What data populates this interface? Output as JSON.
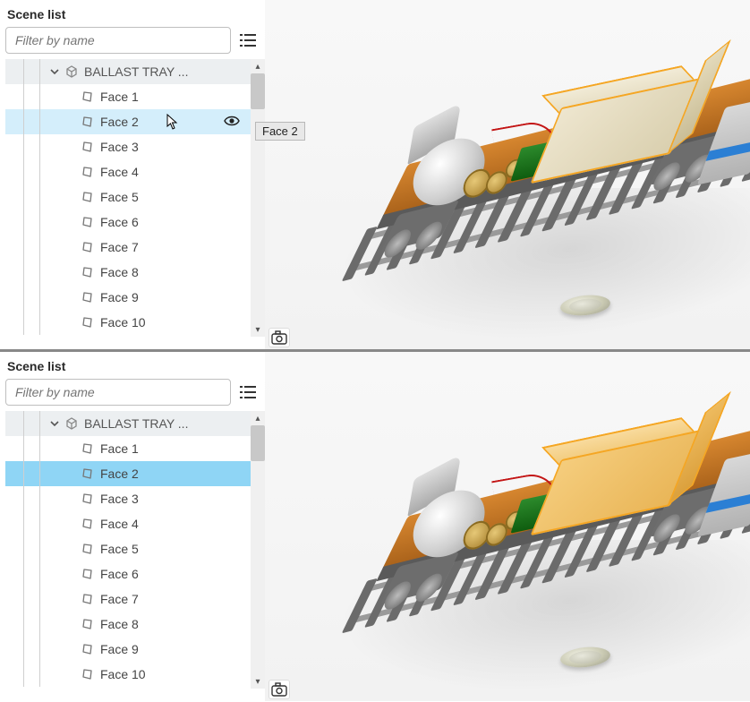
{
  "panels": [
    {
      "title": "Scene list",
      "filter_placeholder": "Filter by name",
      "parent_label": "BALLAST TRAY ...",
      "selected_index": 1,
      "hover_mode": true,
      "show_eye": true,
      "show_cursor": true,
      "tooltip_text": "Face 2",
      "faces": [
        "Face 1",
        "Face 2",
        "Face 3",
        "Face 4",
        "Face 5",
        "Face 6",
        "Face 7",
        "Face 8",
        "Face 9",
        "Face 10"
      ],
      "ballast_style": "outline"
    },
    {
      "title": "Scene list",
      "filter_placeholder": "Filter by name",
      "parent_label": "BALLAST TRAY ...",
      "selected_index": 1,
      "hover_mode": false,
      "show_eye": false,
      "show_cursor": false,
      "tooltip_text": "",
      "faces": [
        "Face 1",
        "Face 2",
        "Face 3",
        "Face 4",
        "Face 5",
        "Face 6",
        "Face 7",
        "Face 8",
        "Face 9",
        "Face 10"
      ],
      "ballast_style": "highlight"
    }
  ],
  "colors": {
    "hover_row": "#d4eefb",
    "selected_row": "#8fd5f5",
    "parent_row": "#eceff1",
    "outline": "#f5a623",
    "deck": "#d6862f"
  }
}
